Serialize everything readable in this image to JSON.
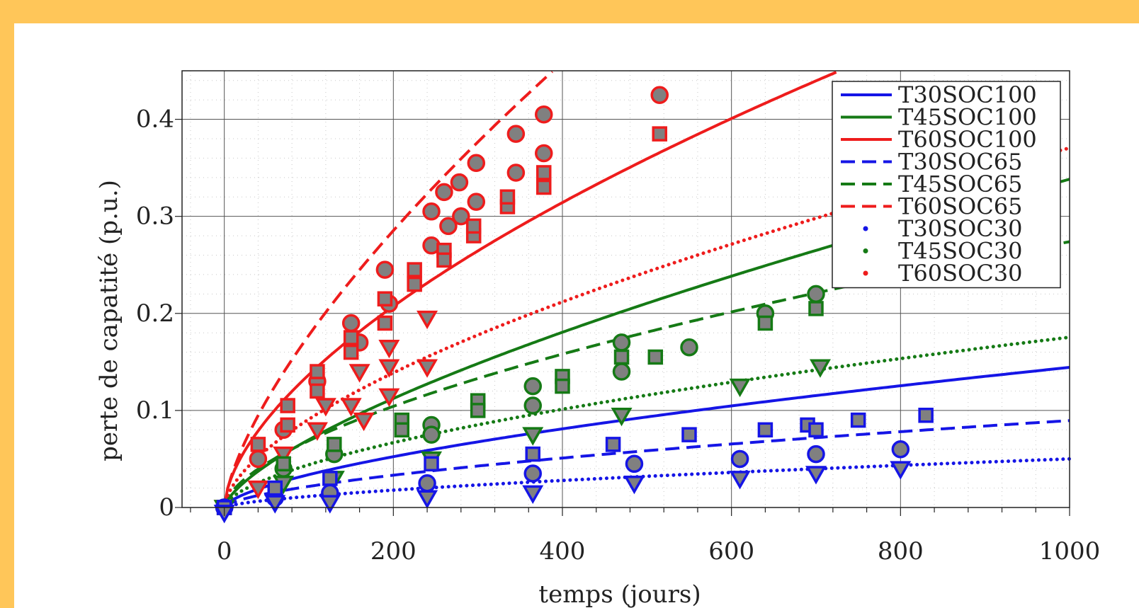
{
  "colors": {
    "background": "#ffc659",
    "panel": "#ffffff",
    "blue": "#1515e6",
    "green": "#157a15",
    "red": "#ee1c1c",
    "marker_fill": "#808080"
  },
  "chart_data": {
    "type": "scatter",
    "xlabel": "temps (jours)",
    "ylabel": "perte de capatité (p.u.)",
    "xlim": [
      -50,
      1000
    ],
    "ylim": [
      0,
      0.45
    ],
    "xticks": [
      0,
      200,
      400,
      600,
      800,
      1000
    ],
    "yticks": [
      0,
      0.1,
      0.2,
      0.3,
      0.4
    ],
    "ytick_labels": [
      "0",
      "0.1",
      "0.2",
      "0.3",
      "0.4"
    ],
    "grid": true,
    "minor_grid": true,
    "legend_position": "top-right",
    "series": [
      {
        "name": "T30SOC100",
        "color": "#1515e6",
        "style": "solid",
        "curve": {
          "a": 0.00186,
          "b": 0.63
        }
      },
      {
        "name": "T45SOC100",
        "color": "#157a15",
        "style": "solid",
        "curve": {
          "a": 0.00298,
          "b": 0.685
        }
      },
      {
        "name": "T60SOC100",
        "color": "#ee1c1c",
        "style": "solid",
        "curve": {
          "a": 0.00863,
          "b": 0.6
        }
      },
      {
        "name": "T30SOC65",
        "color": "#1515e6",
        "style": "dashed",
        "curve": {
          "a": 0.00128,
          "b": 0.615
        }
      },
      {
        "name": "T45SOC65",
        "color": "#157a15",
        "style": "dashed",
        "curve": {
          "a": 0.00434,
          "b": 0.6
        }
      },
      {
        "name": "T60SOC65",
        "color": "#ee1c1c",
        "style": "dashed",
        "curve": {
          "a": 0.00757,
          "b": 0.685
        }
      },
      {
        "name": "T30SOC30",
        "color": "#1515e6",
        "style": "dotted",
        "curve": {
          "a": 0.000602,
          "b": 0.64
        }
      },
      {
        "name": "T45SOC30",
        "color": "#157a15",
        "style": "dotted",
        "curve": {
          "a": 0.00278,
          "b": 0.6
        }
      },
      {
        "name": "T60SOC30",
        "color": "#ee1c1c",
        "style": "dotted",
        "curve": {
          "a": 0.00548,
          "b": 0.61
        }
      }
    ],
    "measurements": [
      {
        "color": "#ee1c1c",
        "marker": "circle",
        "points": [
          [
            0,
            0
          ],
          [
            40,
            0.05
          ],
          [
            70,
            0.08
          ],
          [
            110,
            0.13
          ],
          [
            150,
            0.19
          ],
          [
            160,
            0.17
          ],
          [
            190,
            0.245
          ],
          [
            195,
            0.21
          ],
          [
            245,
            0.305
          ],
          [
            245,
            0.27
          ],
          [
            260,
            0.325
          ],
          [
            265,
            0.29
          ],
          [
            278,
            0.335
          ],
          [
            280,
            0.3
          ],
          [
            298,
            0.355
          ],
          [
            298,
            0.315
          ],
          [
            345,
            0.385
          ],
          [
            345,
            0.345
          ],
          [
            378,
            0.405
          ],
          [
            378,
            0.365
          ],
          [
            515,
            0.425
          ]
        ]
      },
      {
        "color": "#ee1c1c",
        "marker": "square",
        "points": [
          [
            0,
            0
          ],
          [
            40,
            0.065
          ],
          [
            75,
            0.105
          ],
          [
            75,
            0.085
          ],
          [
            110,
            0.14
          ],
          [
            110,
            0.12
          ],
          [
            150,
            0.16
          ],
          [
            150,
            0.175
          ],
          [
            190,
            0.19
          ],
          [
            190,
            0.215
          ],
          [
            225,
            0.245
          ],
          [
            225,
            0.23
          ],
          [
            260,
            0.265
          ],
          [
            260,
            0.255
          ],
          [
            295,
            0.28
          ],
          [
            295,
            0.29
          ],
          [
            335,
            0.31
          ],
          [
            335,
            0.32
          ],
          [
            378,
            0.345
          ],
          [
            378,
            0.33
          ],
          [
            515,
            0.385
          ]
        ]
      },
      {
        "color": "#ee1c1c",
        "marker": "triangle",
        "points": [
          [
            0,
            0
          ],
          [
            40,
            0.02
          ],
          [
            70,
            0.055
          ],
          [
            110,
            0.08
          ],
          [
            120,
            0.105
          ],
          [
            150,
            0.105
          ],
          [
            160,
            0.14
          ],
          [
            165,
            0.09
          ],
          [
            195,
            0.165
          ],
          [
            195,
            0.145
          ],
          [
            195,
            0.115
          ],
          [
            240,
            0.195
          ],
          [
            240,
            0.145
          ]
        ]
      },
      {
        "color": "#157a15",
        "marker": "circle",
        "points": [
          [
            0,
            0
          ],
          [
            70,
            0.04
          ],
          [
            130,
            0.055
          ],
          [
            245,
            0.085
          ],
          [
            245,
            0.075
          ],
          [
            365,
            0.125
          ],
          [
            365,
            0.105
          ],
          [
            470,
            0.17
          ],
          [
            470,
            0.14
          ],
          [
            550,
            0.165
          ],
          [
            640,
            0.2
          ],
          [
            700,
            0.22
          ]
        ]
      },
      {
        "color": "#157a15",
        "marker": "square",
        "points": [
          [
            0,
            0
          ],
          [
            70,
            0.045
          ],
          [
            130,
            0.065
          ],
          [
            210,
            0.09
          ],
          [
            210,
            0.08
          ],
          [
            300,
            0.11
          ],
          [
            300,
            0.1
          ],
          [
            400,
            0.135
          ],
          [
            400,
            0.125
          ],
          [
            470,
            0.155
          ],
          [
            510,
            0.155
          ],
          [
            640,
            0.19
          ],
          [
            700,
            0.205
          ]
        ]
      },
      {
        "color": "#157a15",
        "marker": "triangle",
        "points": [
          [
            0,
            0
          ],
          [
            70,
            0.025
          ],
          [
            130,
            0.03
          ],
          [
            245,
            0.05
          ],
          [
            365,
            0.075
          ],
          [
            470,
            0.095
          ],
          [
            610,
            0.125
          ],
          [
            705,
            0.145
          ]
        ]
      },
      {
        "color": "#1515e6",
        "marker": "circle",
        "points": [
          [
            0,
            0
          ],
          [
            60,
            0.01
          ],
          [
            125,
            0.015
          ],
          [
            240,
            0.025
          ],
          [
            365,
            0.035
          ],
          [
            485,
            0.045
          ],
          [
            610,
            0.05
          ],
          [
            700,
            0.055
          ],
          [
            800,
            0.06
          ]
        ]
      },
      {
        "color": "#1515e6",
        "marker": "square",
        "points": [
          [
            0,
            0
          ],
          [
            60,
            0.02
          ],
          [
            125,
            0.03
          ],
          [
            245,
            0.045
          ],
          [
            365,
            0.055
          ],
          [
            460,
            0.065
          ],
          [
            550,
            0.075
          ],
          [
            640,
            0.08
          ],
          [
            690,
            0.085
          ],
          [
            700,
            0.08
          ],
          [
            750,
            0.09
          ],
          [
            830,
            0.095
          ]
        ]
      },
      {
        "color": "#1515e6",
        "marker": "triangle",
        "points": [
          [
            0,
            -0.005
          ],
          [
            60,
            0.005
          ],
          [
            125,
            0.005
          ],
          [
            240,
            0.01
          ],
          [
            365,
            0.015
          ],
          [
            485,
            0.025
          ],
          [
            610,
            0.03
          ],
          [
            700,
            0.035
          ],
          [
            800,
            0.04
          ]
        ]
      }
    ]
  }
}
